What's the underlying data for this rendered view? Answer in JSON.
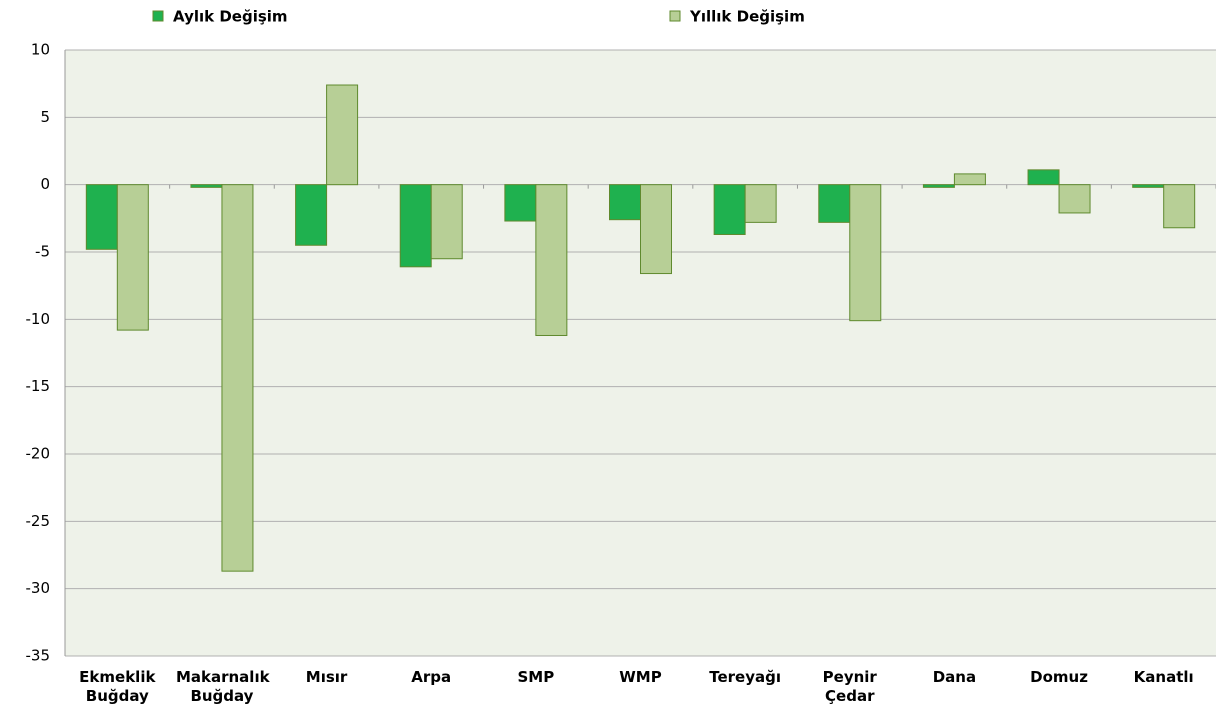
{
  "chart_data": {
    "type": "bar",
    "categories": [
      "Ekmeklik Buğday",
      "Makarnalık Buğday",
      "Mısır",
      "Arpa",
      "SMP",
      "WMP",
      "Tereyağı",
      "Peynir Çedar",
      "Dana",
      "Domuz",
      "Kanatlı"
    ],
    "series": [
      {
        "name": "Aylık Değişim",
        "color": "#1fb14f",
        "values": [
          -4.8,
          -0.2,
          -4.5,
          -6.1,
          -2.7,
          -2.6,
          -3.7,
          -2.8,
          -0.2,
          1.1,
          -0.2
        ]
      },
      {
        "name": "Yıllık Değişim",
        "color": "#b7cf96",
        "values": [
          -10.8,
          -28.7,
          7.4,
          -5.5,
          -11.2,
          -6.6,
          -2.8,
          -10.1,
          0.8,
          -2.1,
          -3.2
        ]
      }
    ],
    "ylim": [
      -35,
      10
    ],
    "yticks": [
      10,
      5,
      0,
      -5,
      -10,
      -15,
      -20,
      -25,
      -30,
      -35
    ],
    "grid": true
  }
}
